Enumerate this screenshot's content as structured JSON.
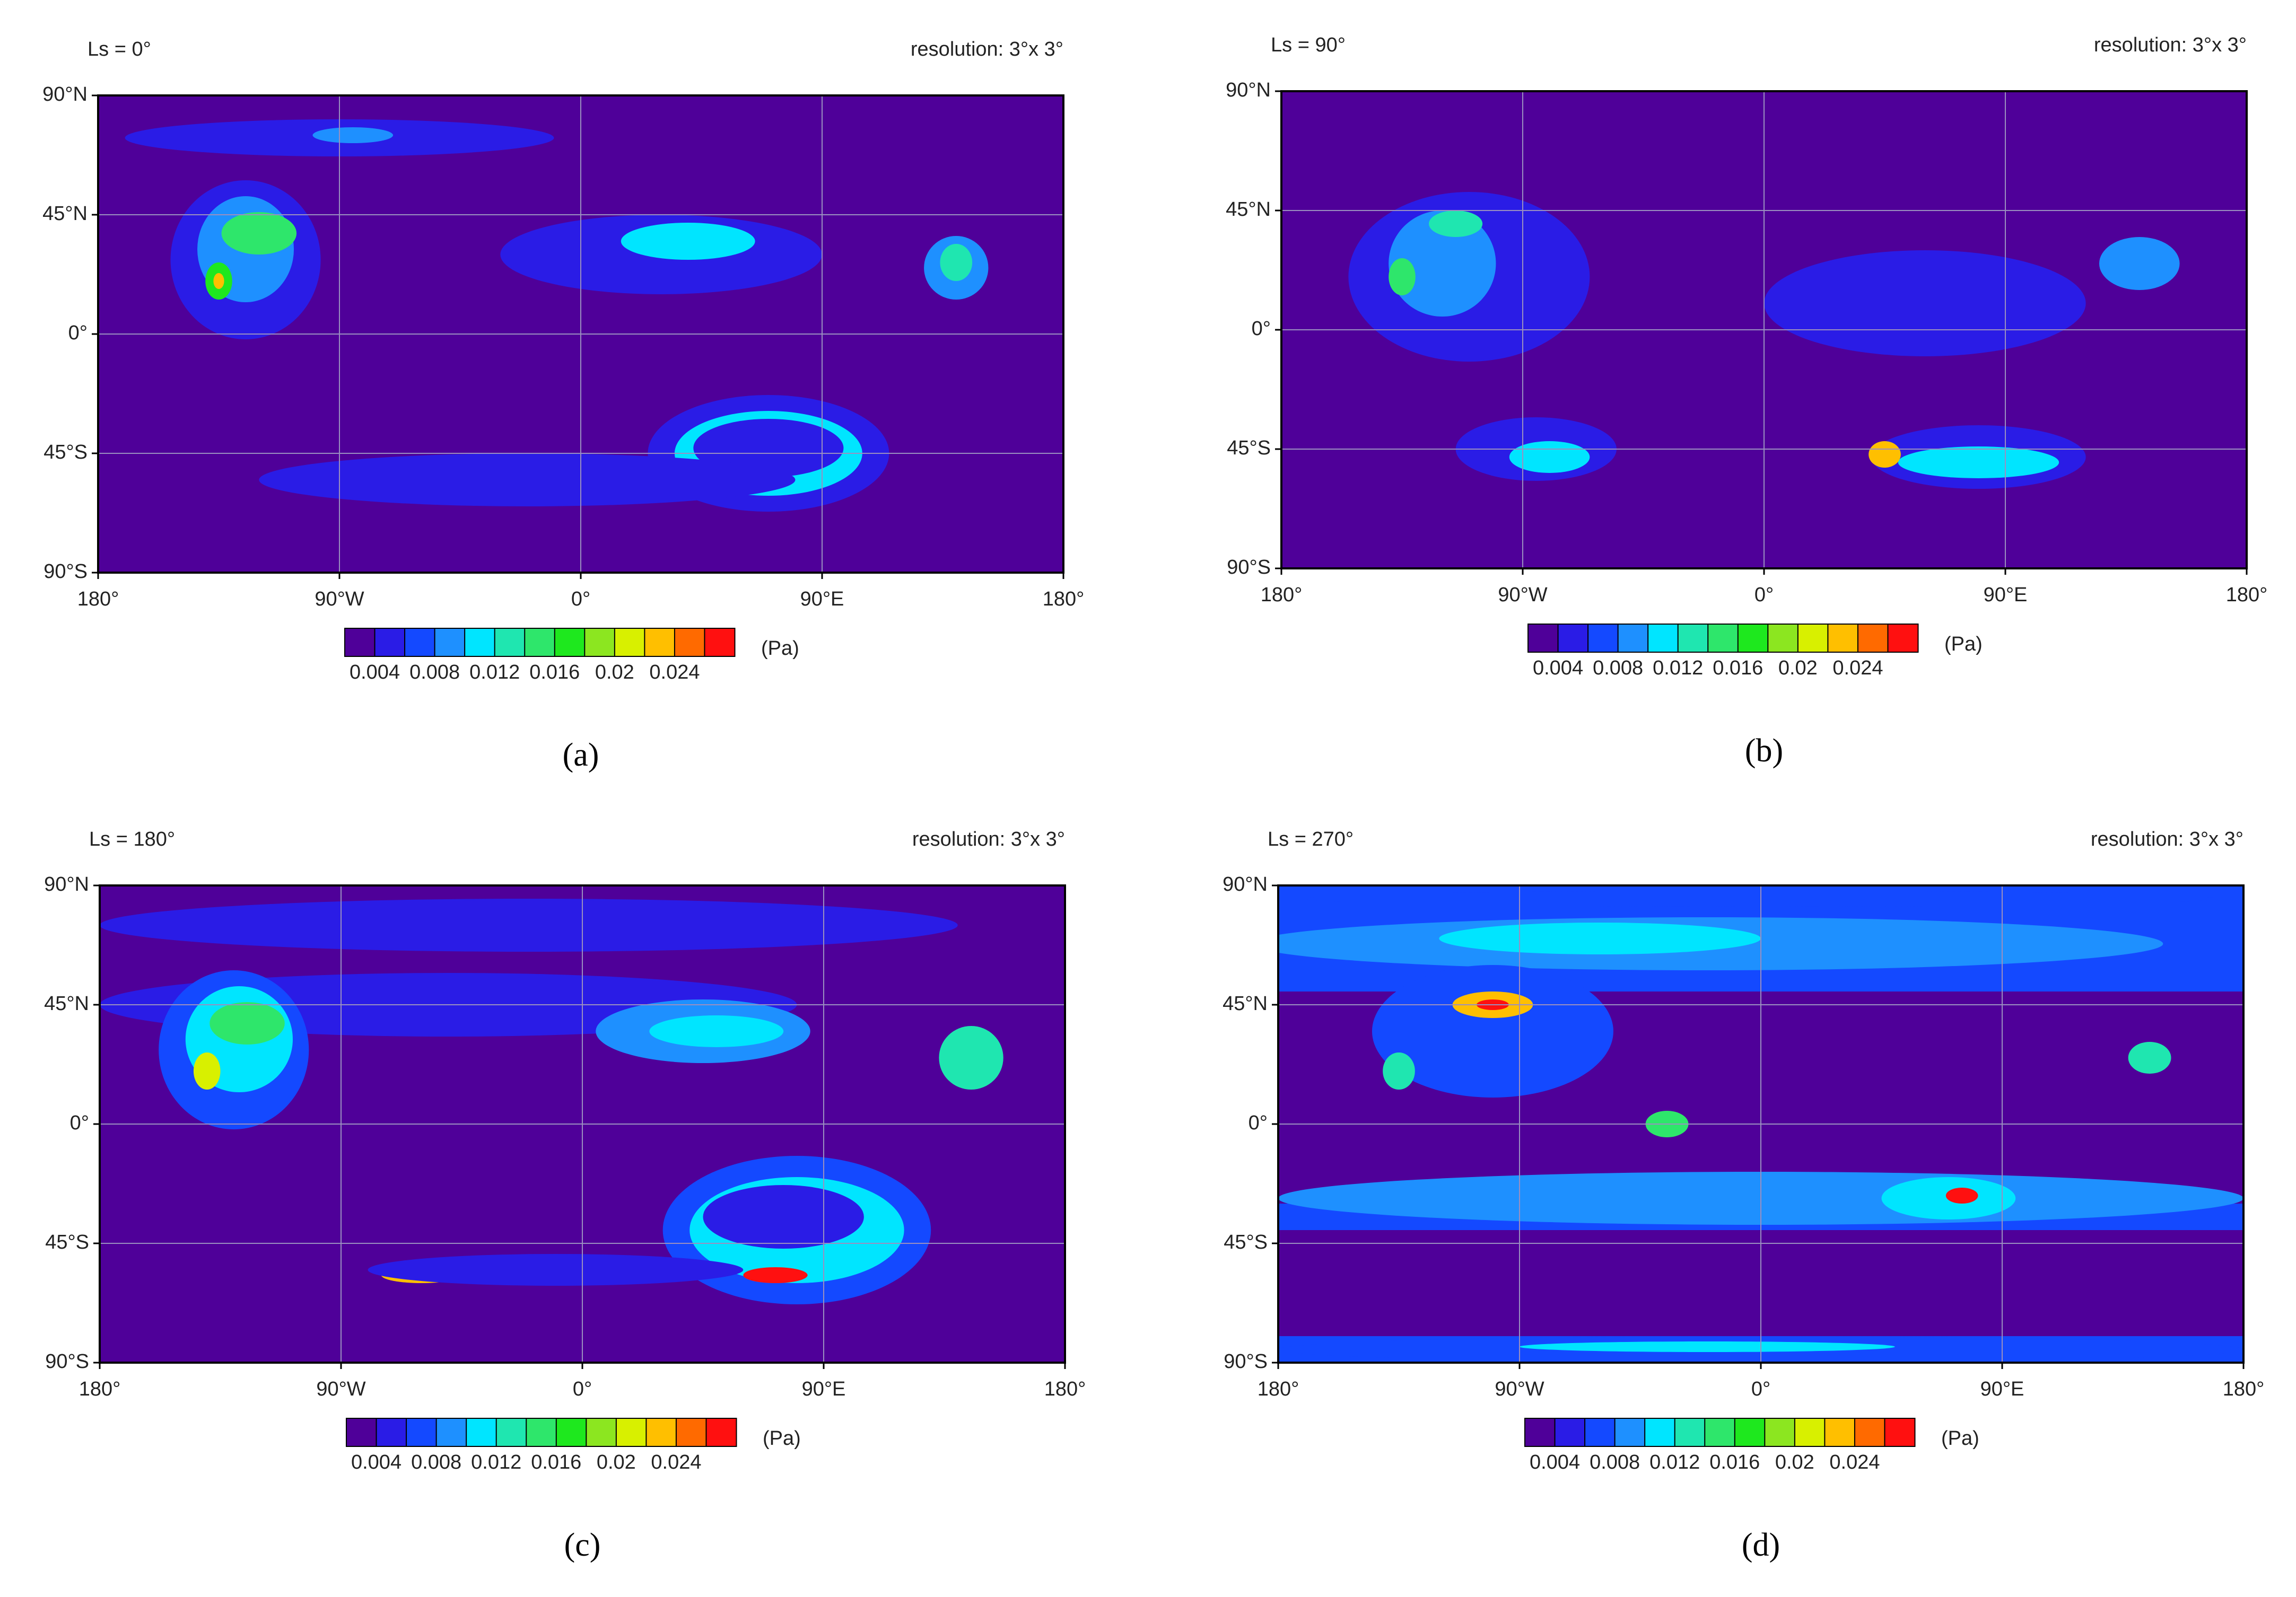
{
  "chart_data": [
    {
      "type": "contour",
      "title": "Ls = 0°",
      "subtitle": "resolution: 3°x 3°",
      "caption": "(a)",
      "xlim": [
        -180,
        180
      ],
      "xticks": [
        {
          "value": -180,
          "label": "180°"
        },
        {
          "value": -90,
          "label": "90°W"
        },
        {
          "value": 0,
          "label": "0°"
        },
        {
          "value": 90,
          "label": "90°E"
        },
        {
          "value": 180,
          "label": "180°"
        }
      ],
      "ylim": [
        -90,
        90
      ],
      "yticks": [
        {
          "value": -90,
          "label": "90°S"
        },
        {
          "value": -45,
          "label": "45°S"
        },
        {
          "value": 0,
          "label": "0°"
        },
        {
          "value": 45,
          "label": "45°N"
        },
        {
          "value": 90,
          "label": "90°N"
        }
      ],
      "grid": true,
      "colorbar": {
        "clim": [
          0.002,
          0.028
        ],
        "ticks": [
          0.004,
          0.008,
          0.012,
          0.016,
          0.02,
          0.024
        ],
        "unit": "(Pa)",
        "colors": [
          "#4f0099",
          "#2a1ce6",
          "#1449ff",
          "#1e90ff",
          "#00e5ff",
          "#1fe6b0",
          "#2ee66b",
          "#1ee81e",
          "#8ce620",
          "#d8f000",
          "#ffbf00",
          "#ff6a00",
          "#ff1010"
        ]
      }
    },
    {
      "type": "contour",
      "title": "Ls = 90°",
      "subtitle": "resolution: 3°x 3°",
      "caption": "(b)",
      "xlim": [
        -180,
        180
      ],
      "xticks": [
        {
          "value": -180,
          "label": "180°"
        },
        {
          "value": -90,
          "label": "90°W"
        },
        {
          "value": 0,
          "label": "0°"
        },
        {
          "value": 90,
          "label": "90°E"
        },
        {
          "value": 180,
          "label": "180°"
        }
      ],
      "ylim": [
        -90,
        90
      ],
      "yticks": [
        {
          "value": -90,
          "label": "90°S"
        },
        {
          "value": -45,
          "label": "45°S"
        },
        {
          "value": 0,
          "label": "0°"
        },
        {
          "value": 45,
          "label": "45°N"
        },
        {
          "value": 90,
          "label": "90°N"
        }
      ],
      "grid": true,
      "colorbar": {
        "clim": [
          0.002,
          0.028
        ],
        "ticks": [
          0.004,
          0.008,
          0.012,
          0.016,
          0.02,
          0.024
        ],
        "unit": "(Pa)",
        "colors": [
          "#4f0099",
          "#2a1ce6",
          "#1449ff",
          "#1e90ff",
          "#00e5ff",
          "#1fe6b0",
          "#2ee66b",
          "#1ee81e",
          "#8ce620",
          "#d8f000",
          "#ffbf00",
          "#ff6a00",
          "#ff1010"
        ]
      }
    },
    {
      "type": "contour",
      "title": "Ls = 180°",
      "subtitle": "resolution: 3°x 3°",
      "caption": "(c)",
      "xlim": [
        -180,
        180
      ],
      "xticks": [
        {
          "value": -180,
          "label": "180°"
        },
        {
          "value": -90,
          "label": "90°W"
        },
        {
          "value": 0,
          "label": "0°"
        },
        {
          "value": 90,
          "label": "90°E"
        },
        {
          "value": 180,
          "label": "180°"
        }
      ],
      "ylim": [
        -90,
        90
      ],
      "yticks": [
        {
          "value": -90,
          "label": "90°S"
        },
        {
          "value": -45,
          "label": "45°S"
        },
        {
          "value": 0,
          "label": "0°"
        },
        {
          "value": 45,
          "label": "45°N"
        },
        {
          "value": 90,
          "label": "90°N"
        }
      ],
      "grid": true,
      "colorbar": {
        "clim": [
          0.002,
          0.028
        ],
        "ticks": [
          0.004,
          0.008,
          0.012,
          0.016,
          0.02,
          0.024
        ],
        "unit": "(Pa)",
        "colors": [
          "#4f0099",
          "#2a1ce6",
          "#1449ff",
          "#1e90ff",
          "#00e5ff",
          "#1fe6b0",
          "#2ee66b",
          "#1ee81e",
          "#8ce620",
          "#d8f000",
          "#ffbf00",
          "#ff6a00",
          "#ff1010"
        ]
      }
    },
    {
      "type": "contour",
      "title": "Ls = 270°",
      "subtitle": "resolution: 3°x 3°",
      "caption": "(d)",
      "xlim": [
        -180,
        180
      ],
      "xticks": [
        {
          "value": -180,
          "label": "180°"
        },
        {
          "value": -90,
          "label": "90°W"
        },
        {
          "value": 0,
          "label": "0°"
        },
        {
          "value": 90,
          "label": "90°E"
        },
        {
          "value": 180,
          "label": "180°"
        }
      ],
      "ylim": [
        -90,
        90
      ],
      "yticks": [
        {
          "value": -90,
          "label": "90°S"
        },
        {
          "value": -45,
          "label": "45°S"
        },
        {
          "value": 0,
          "label": "0°"
        },
        {
          "value": 45,
          "label": "45°N"
        },
        {
          "value": 90,
          "label": "90°N"
        }
      ],
      "grid": true,
      "colorbar": {
        "clim": [
          0.002,
          0.028
        ],
        "ticks": [
          0.004,
          0.008,
          0.012,
          0.016,
          0.02,
          0.024
        ],
        "unit": "(Pa)",
        "colors": [
          "#4f0099",
          "#2a1ce6",
          "#1449ff",
          "#1e90ff",
          "#00e5ff",
          "#1fe6b0",
          "#2ee66b",
          "#1ee81e",
          "#8ce620",
          "#d8f000",
          "#ffbf00",
          "#ff6a00",
          "#ff1010"
        ]
      }
    }
  ]
}
